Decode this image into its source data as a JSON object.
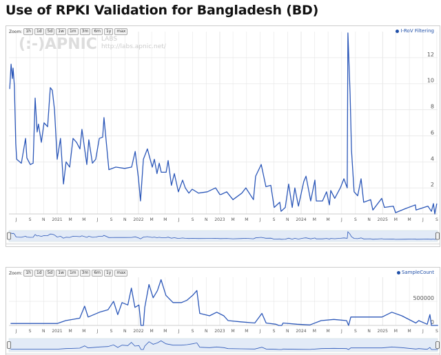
{
  "title": "Use of RPKI Validation for Bangladesh (BD)",
  "zoom_label": "Zoom:",
  "zoom_buttons": [
    "1h",
    "1d",
    "5d",
    "1w",
    "1m",
    "3m",
    "6m",
    "1y",
    "max"
  ],
  "watermark": {
    "logo": "(:-)APNIC",
    "labs": "LABS",
    "url": "http://labs.apnic.net/"
  },
  "colors": {
    "series": "#2a56b8",
    "navigator_fill": "#e3ebf7",
    "grid": "#e6e6e6"
  },
  "x_tick_labels": [
    "J",
    "S",
    "N",
    "2021",
    "M",
    "M",
    "J",
    "S",
    "N",
    "2022",
    "M",
    "M",
    "J",
    "S",
    "N",
    "2023",
    "M",
    "M",
    "J",
    "S",
    "N",
    "2024",
    "M",
    "M",
    "J",
    "S",
    "N",
    "2025",
    "M",
    "M",
    "J",
    "S"
  ],
  "chart_data": [
    {
      "type": "line",
      "series": [
        {
          "name": "I-RoV Filtering",
          "values": [
            [
              "2020-06-02",
              9.6
            ],
            [
              "2020-06-08",
              11.5
            ],
            [
              "2020-06-14",
              10.4
            ],
            [
              "2020-06-17",
              11.2
            ],
            [
              "2020-06-23",
              9.8
            ],
            [
              "2020-06-29",
              5.4
            ],
            [
              "2020-07-03",
              4.2
            ],
            [
              "2020-07-24",
              3.9
            ],
            [
              "2020-08-12",
              5.8
            ],
            [
              "2020-08-18",
              4.3
            ],
            [
              "2020-09-02",
              3.8
            ],
            [
              "2020-09-15",
              3.9
            ],
            [
              "2020-09-24",
              8.9
            ],
            [
              "2020-10-03",
              6.3
            ],
            [
              "2020-10-09",
              6.9
            ],
            [
              "2020-10-22",
              5.5
            ],
            [
              "2020-11-03",
              7.0
            ],
            [
              "2020-11-19",
              6.7
            ],
            [
              "2020-12-01",
              9.7
            ],
            [
              "2020-12-10",
              9.5
            ],
            [
              "2020-12-20",
              8.0
            ],
            [
              "2021-01-01",
              4.2
            ],
            [
              "2021-01-16",
              5.8
            ],
            [
              "2021-01-29",
              2.3
            ],
            [
              "2021-02-10",
              4.0
            ],
            [
              "2021-02-26",
              3.6
            ],
            [
              "2021-03-13",
              5.8
            ],
            [
              "2021-03-29",
              5.5
            ],
            [
              "2021-04-13",
              5.0
            ],
            [
              "2021-04-22",
              6.5
            ],
            [
              "2021-05-14",
              3.8
            ],
            [
              "2021-05-23",
              5.7
            ],
            [
              "2021-06-08",
              3.9
            ],
            [
              "2021-06-23",
              4.2
            ],
            [
              "2021-07-09",
              5.8
            ],
            [
              "2021-07-24",
              5.9
            ],
            [
              "2021-07-30",
              7.4
            ],
            [
              "2021-08-21",
              3.4
            ],
            [
              "2021-09-21",
              3.6
            ],
            [
              "2021-10-31",
              3.5
            ],
            [
              "2021-12-01",
              3.6
            ],
            [
              "2021-12-17",
              4.8
            ],
            [
              "2022-01-01",
              2.7
            ],
            [
              "2022-01-10",
              1.0
            ],
            [
              "2022-01-23",
              4.2
            ],
            [
              "2022-02-10",
              5.0
            ],
            [
              "2022-03-04",
              3.6
            ],
            [
              "2022-03-13",
              4.2
            ],
            [
              "2022-03-25",
              3.1
            ],
            [
              "2022-04-04",
              3.9
            ],
            [
              "2022-04-13",
              3.2
            ],
            [
              "2022-05-05",
              3.2
            ],
            [
              "2022-05-14",
              4.1
            ],
            [
              "2022-05-29",
              2.2
            ],
            [
              "2022-06-11",
              3.1
            ],
            [
              "2022-06-29",
              1.7
            ],
            [
              "2022-07-18",
              2.6
            ],
            [
              "2022-07-30",
              2.0
            ],
            [
              "2022-08-15",
              1.6
            ],
            [
              "2022-08-30",
              1.9
            ],
            [
              "2022-09-27",
              1.6
            ],
            [
              "2022-11-06",
              1.7
            ],
            [
              "2022-12-13",
              2.0
            ],
            [
              "2023-01-01",
              1.5
            ],
            [
              "2023-01-07",
              1.5
            ],
            [
              "2023-02-01",
              1.7
            ],
            [
              "2023-03-01",
              1.1
            ],
            [
              "2023-04-10",
              1.6
            ],
            [
              "2023-04-28",
              2.0
            ],
            [
              "2023-06-01",
              1.1
            ],
            [
              "2023-06-11",
              2.9
            ],
            [
              "2023-07-06",
              3.8
            ],
            [
              "2023-07-27",
              2.1
            ],
            [
              "2023-08-18",
              2.2
            ],
            [
              "2023-09-02",
              0.5
            ],
            [
              "2023-09-27",
              0.9
            ],
            [
              "2023-10-03",
              0.2
            ],
            [
              "2023-10-22",
              0.5
            ],
            [
              "2023-11-06",
              2.3
            ],
            [
              "2023-11-22",
              0.5
            ],
            [
              "2023-12-04",
              2.0
            ],
            [
              "2023-12-20",
              0.6
            ],
            [
              "2024-01-13",
              2.5
            ],
            [
              "2024-01-23",
              2.9
            ],
            [
              "2024-02-13",
              1.0
            ],
            [
              "2024-03-03",
              2.6
            ],
            [
              "2024-03-09",
              1.0
            ],
            [
              "2024-04-06",
              1.0
            ],
            [
              "2024-04-24",
              1.7
            ],
            [
              "2024-05-07",
              0.7
            ],
            [
              "2024-05-13",
              1.8
            ],
            [
              "2024-05-31",
              1.2
            ],
            [
              "2024-06-25",
              2.0
            ],
            [
              "2024-07-11",
              2.7
            ],
            [
              "2024-07-26",
              2.0
            ],
            [
              "2024-07-29",
              13.9
            ],
            [
              "2024-08-08",
              9.2
            ],
            [
              "2024-08-14",
              4.9
            ],
            [
              "2024-08-26",
              1.7
            ],
            [
              "2024-09-11",
              1.4
            ],
            [
              "2024-09-26",
              2.7
            ],
            [
              "2024-10-08",
              0.9
            ],
            [
              "2024-11-08",
              1.1
            ],
            [
              "2024-11-18",
              0.3
            ],
            [
              "2024-12-28",
              1.2
            ],
            [
              "2025-01-09",
              0.5
            ],
            [
              "2025-02-18",
              0.6
            ],
            [
              "2025-02-28",
              0.1
            ],
            [
              "2025-04-12",
              0.4
            ],
            [
              "2025-05-28",
              0.7
            ],
            [
              "2025-05-31",
              0.3
            ],
            [
              "2025-07-23",
              0.6
            ],
            [
              "2025-08-08",
              0.2
            ],
            [
              "2025-08-17",
              0.8
            ],
            [
              "2025-08-23",
              0.0
            ],
            [
              "2025-09-01",
              0.8
            ]
          ]
        }
      ],
      "y_ticks": [
        2,
        4,
        6,
        8,
        10,
        12
      ],
      "ylim": [
        0,
        14
      ],
      "xlim": [
        "2020-05-31",
        "2025-09-05"
      ],
      "grid": true,
      "legend": "top-right"
    },
    {
      "type": "line",
      "series": [
        {
          "name": "SampleCount",
          "values": [
            [
              "2020-06-06",
              40000
            ],
            [
              "2021-01-01",
              40000
            ],
            [
              "2021-02-08",
              100000
            ],
            [
              "2021-04-12",
              150000
            ],
            [
              "2021-05-04",
              400000
            ],
            [
              "2021-05-20",
              175000
            ],
            [
              "2021-07-10",
              275000
            ],
            [
              "2021-08-17",
              325000
            ],
            [
              "2021-09-11",
              500000
            ],
            [
              "2021-09-30",
              225000
            ],
            [
              "2021-10-19",
              475000
            ],
            [
              "2021-11-14",
              425000
            ],
            [
              "2021-11-30",
              775000
            ],
            [
              "2021-12-16",
              375000
            ],
            [
              "2022-01-03",
              425000
            ],
            [
              "2022-01-12",
              0
            ],
            [
              "2022-01-23",
              0
            ],
            [
              "2022-01-29",
              375000
            ],
            [
              "2022-02-17",
              850000
            ],
            [
              "2022-03-08",
              575000
            ],
            [
              "2022-03-27",
              725000
            ],
            [
              "2022-04-12",
              950000
            ],
            [
              "2022-05-04",
              625000
            ],
            [
              "2022-06-05",
              475000
            ],
            [
              "2022-07-13",
              475000
            ],
            [
              "2022-08-07",
              525000
            ],
            [
              "2022-09-01",
              625000
            ],
            [
              "2022-09-20",
              725000
            ],
            [
              "2022-10-03",
              250000
            ],
            [
              "2022-11-16",
              200000
            ],
            [
              "2022-12-18",
              275000
            ],
            [
              "2023-01-19",
              200000
            ],
            [
              "2023-02-07",
              100000
            ],
            [
              "2023-04-05",
              75000
            ],
            [
              "2023-06-07",
              50000
            ],
            [
              "2023-07-09",
              250000
            ],
            [
              "2023-07-28",
              50000
            ],
            [
              "2023-09-10",
              25000
            ],
            [
              "2023-09-23",
              0
            ],
            [
              "2023-10-06",
              0
            ],
            [
              "2023-10-12",
              50000
            ],
            [
              "2023-12-14",
              25000
            ],
            [
              "2024-02-09",
              10000
            ],
            [
              "2024-03-31",
              100000
            ],
            [
              "2024-05-27",
              125000
            ],
            [
              "2024-07-23",
              100000
            ],
            [
              "2024-08-01",
              0
            ],
            [
              "2024-08-11",
              175000
            ],
            [
              "2024-10-26",
              175000
            ],
            [
              "2024-12-29",
              175000
            ],
            [
              "2025-02-11",
              275000
            ],
            [
              "2025-03-28",
              200000
            ],
            [
              "2025-05-30",
              50000
            ],
            [
              "2025-06-12",
              100000
            ],
            [
              "2025-07-20",
              25000
            ],
            [
              "2025-08-01",
              225000
            ],
            [
              "2025-08-08",
              0
            ],
            [
              "2025-09-07",
              0
            ]
          ]
        }
      ],
      "y_ticks": [
        0,
        500000
      ],
      "ylim": [
        0,
        1000000
      ],
      "xlim": [
        "2020-05-31",
        "2025-09-05"
      ],
      "grid": true,
      "legend": "top-right"
    }
  ]
}
